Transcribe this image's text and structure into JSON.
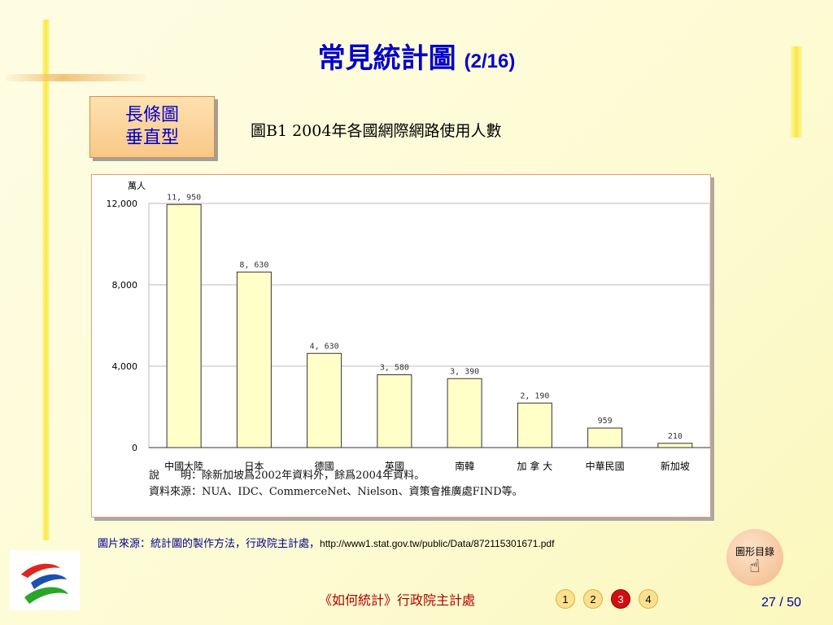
{
  "title": {
    "main": "常見統計圖",
    "sub": "(2/16)"
  },
  "label_box": {
    "line1": "長條圖",
    "line2": "垂直型"
  },
  "chart_caption": "圖B1  2004年各國網際網路使用人數",
  "chart_data": {
    "type": "bar",
    "unit_label": "萬人",
    "categories": [
      "中國大陸",
      "日本",
      "德國",
      "英國",
      "南韓",
      "加 拿 大",
      "中華民國",
      "新加坡"
    ],
    "values": [
      11950,
      8630,
      4630,
      3580,
      3390,
      2190,
      959,
      210
    ],
    "value_labels": [
      "11, 950",
      "8, 630",
      "4, 630",
      "3, 580",
      "3, 390",
      "2, 190",
      "959",
      "210"
    ],
    "yticks": [
      0,
      4000,
      8000,
      12000
    ],
    "ytick_labels": [
      "0",
      "4,000",
      "8,000",
      "12,000"
    ],
    "ylim": [
      0,
      12000
    ],
    "grid": true,
    "bar_color": "#ffffc8",
    "bar_stroke": "#333333"
  },
  "notes": {
    "line1": "說　　明：除新加坡爲2002年資料外，餘爲2004年資料。",
    "line2": "資料來源：NUA、IDC、CommerceNet、Nielson、資策會推廣處FIND等。"
  },
  "source": {
    "prefix": "圖片來源：統計圖的製作方法，行政院主計處，",
    "url": "http://www1.stat.gov.tw/public/Data/872115301671.pdf"
  },
  "toc_button": {
    "label": "圖形目錄",
    "icon": "hand-pointer-icon"
  },
  "footer": "《如何統計》行政院主計處",
  "pager": {
    "items": [
      "1",
      "2",
      "3",
      "4"
    ],
    "active": "3"
  },
  "page_number": "27 / 50"
}
